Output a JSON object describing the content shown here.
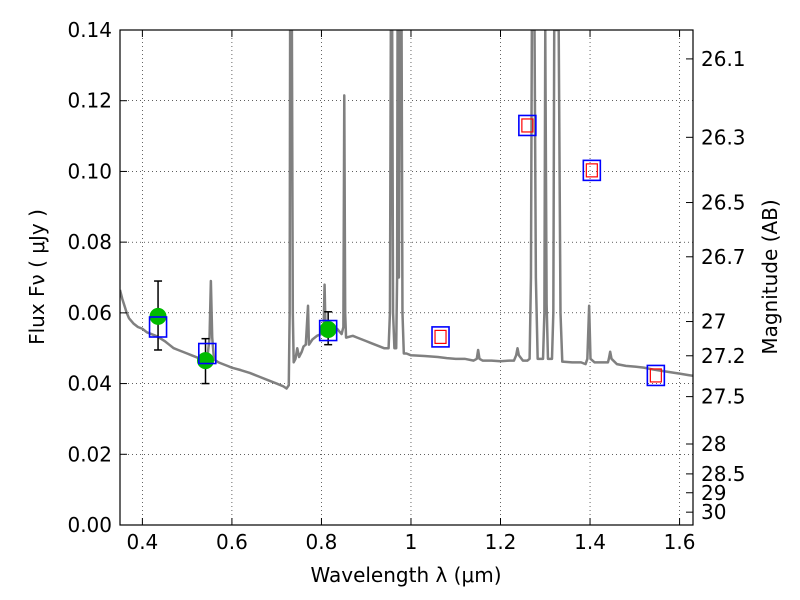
{
  "chart_data": {
    "type": "line",
    "title": "",
    "xlabel": "Wavelength  λ (μm)",
    "ylabel": "Flux  Fν  ( μJy )",
    "y2label": "Magnitude (AB)",
    "xlim": [
      0.35,
      1.63
    ],
    "ylim": [
      0.0,
      0.14
    ],
    "grid": true,
    "x_ticks": [
      0.4,
      0.6,
      0.8,
      1.0,
      1.2,
      1.4,
      1.6
    ],
    "x_tick_labels": [
      "0.4",
      "0.6",
      "0.8",
      "1",
      "1.2",
      "1.4",
      "1.6"
    ],
    "y_ticks": [
      0.0,
      0.02,
      0.04,
      0.06,
      0.08,
      0.1,
      0.12,
      0.14
    ],
    "y_tick_labels": [
      "0.00",
      "0.02",
      "0.04",
      "0.06",
      "0.08",
      "0.10",
      "0.12",
      "0.14"
    ],
    "mag_ticks": [
      26.1,
      26.3,
      26.5,
      26.7,
      27,
      27.2,
      27.5,
      28,
      28.5,
      29,
      30
    ],
    "mag_tick_labels": [
      "26.1",
      "26.3",
      "26.5",
      "26.7",
      "27",
      "27.2",
      "27.5",
      "28",
      "28.5",
      "29",
      "30"
    ],
    "colors": {
      "model": "#808080",
      "observed": "#00bb00",
      "model_photometry": "#0000ff",
      "fit_photometry": "#ff0000",
      "errorbar": "#000000"
    },
    "series": [
      {
        "kind": "model-spectrum",
        "points": [
          [
            0.35,
            0.0665
          ],
          [
            0.355,
            0.064
          ],
          [
            0.36,
            0.062
          ],
          [
            0.365,
            0.06
          ],
          [
            0.37,
            0.0585
          ],
          [
            0.38,
            0.057
          ],
          [
            0.39,
            0.056
          ],
          [
            0.4,
            0.0555
          ],
          [
            0.41,
            0.0545
          ],
          [
            0.42,
            0.054
          ],
          [
            0.43,
            0.0535
          ],
          [
            0.44,
            0.0528
          ],
          [
            0.45,
            0.052
          ],
          [
            0.46,
            0.051
          ],
          [
            0.47,
            0.05
          ],
          [
            0.48,
            0.0495
          ],
          [
            0.49,
            0.049
          ],
          [
            0.5,
            0.0485
          ],
          [
            0.51,
            0.048
          ],
          [
            0.52,
            0.0475
          ],
          [
            0.53,
            0.047
          ],
          [
            0.54,
            0.0468
          ],
          [
            0.545,
            0.047
          ],
          [
            0.55,
            0.053
          ],
          [
            0.553,
            0.069
          ],
          [
            0.556,
            0.053
          ],
          [
            0.56,
            0.0468
          ],
          [
            0.57,
            0.046
          ],
          [
            0.58,
            0.0455
          ],
          [
            0.59,
            0.045
          ],
          [
            0.6,
            0.0445
          ],
          [
            0.62,
            0.0438
          ],
          [
            0.64,
            0.043
          ],
          [
            0.66,
            0.042
          ],
          [
            0.68,
            0.041
          ],
          [
            0.7,
            0.04
          ],
          [
            0.715,
            0.0392
          ],
          [
            0.722,
            0.0386
          ],
          [
            0.727,
            0.0395
          ],
          [
            0.729,
            0.06
          ],
          [
            0.73,
            0.14
          ],
          [
            0.734,
            0.14
          ],
          [
            0.736,
            0.06
          ],
          [
            0.738,
            0.046
          ],
          [
            0.742,
            0.047
          ],
          [
            0.746,
            0.05
          ],
          [
            0.75,
            0.0475
          ],
          [
            0.756,
            0.049
          ],
          [
            0.76,
            0.0505
          ],
          [
            0.765,
            0.051
          ],
          [
            0.77,
            0.062
          ],
          [
            0.772,
            0.051
          ],
          [
            0.78,
            0.0525
          ],
          [
            0.79,
            0.0535
          ],
          [
            0.8,
            0.054
          ],
          [
            0.805,
            0.056
          ],
          [
            0.807,
            0.068
          ],
          [
            0.809,
            0.056
          ],
          [
            0.815,
            0.056
          ],
          [
            0.825,
            0.056
          ],
          [
            0.835,
            0.0555
          ],
          [
            0.845,
            0.054
          ],
          [
            0.849,
            0.056
          ],
          [
            0.851,
            0.1215
          ],
          [
            0.853,
            0.06
          ],
          [
            0.855,
            0.053
          ],
          [
            0.87,
            0.0535
          ],
          [
            0.88,
            0.053
          ],
          [
            0.89,
            0.0525
          ],
          [
            0.9,
            0.052
          ],
          [
            0.91,
            0.0515
          ],
          [
            0.92,
            0.051
          ],
          [
            0.93,
            0.0505
          ],
          [
            0.94,
            0.05
          ],
          [
            0.95,
            0.05
          ],
          [
            0.953,
            0.06
          ],
          [
            0.955,
            0.14
          ],
          [
            0.958,
            0.14
          ],
          [
            0.96,
            0.06
          ],
          [
            0.963,
            0.05
          ],
          [
            0.967,
            0.05
          ],
          [
            0.969,
            0.07
          ],
          [
            0.97,
            0.14
          ],
          [
            0.973,
            0.07
          ],
          [
            0.975,
            0.14
          ],
          [
            0.979,
            0.14
          ],
          [
            0.981,
            0.06
          ],
          [
            0.984,
            0.0485
          ],
          [
            0.99,
            0.0485
          ],
          [
            1.0,
            0.048
          ],
          [
            1.03,
            0.0478
          ],
          [
            1.06,
            0.0475
          ],
          [
            1.08,
            0.0472
          ],
          [
            1.1,
            0.047
          ],
          [
            1.12,
            0.047
          ],
          [
            1.14,
            0.0465
          ],
          [
            1.147,
            0.047
          ],
          [
            1.15,
            0.0495
          ],
          [
            1.153,
            0.047
          ],
          [
            1.16,
            0.0465
          ],
          [
            1.18,
            0.0465
          ],
          [
            1.2,
            0.0463
          ],
          [
            1.22,
            0.0465
          ],
          [
            1.23,
            0.0465
          ],
          [
            1.235,
            0.048
          ],
          [
            1.238,
            0.05
          ],
          [
            1.241,
            0.048
          ],
          [
            1.25,
            0.0465
          ],
          [
            1.26,
            0.0465
          ],
          [
            1.265,
            0.047
          ],
          [
            1.268,
            0.07
          ],
          [
            1.27,
            0.14
          ],
          [
            1.276,
            0.14
          ],
          [
            1.279,
            0.07
          ],
          [
            1.283,
            0.047
          ],
          [
            1.29,
            0.047
          ],
          [
            1.295,
            0.047
          ],
          [
            1.298,
            0.06
          ],
          [
            1.3,
            0.14
          ],
          [
            1.303,
            0.0625
          ],
          [
            1.306,
            0.047
          ],
          [
            1.31,
            0.047
          ],
          [
            1.315,
            0.047
          ],
          [
            1.318,
            0.06
          ],
          [
            1.32,
            0.14
          ],
          [
            1.33,
            0.14
          ],
          [
            1.334,
            0.06
          ],
          [
            1.338,
            0.0462
          ],
          [
            1.36,
            0.046
          ],
          [
            1.38,
            0.046
          ],
          [
            1.39,
            0.0455
          ],
          [
            1.394,
            0.047
          ],
          [
            1.398,
            0.062
          ],
          [
            1.401,
            0.047
          ],
          [
            1.41,
            0.046
          ],
          [
            1.43,
            0.046
          ],
          [
            1.44,
            0.046
          ],
          [
            1.442,
            0.047
          ],
          [
            1.445,
            0.049
          ],
          [
            1.448,
            0.047
          ],
          [
            1.46,
            0.0455
          ],
          [
            1.48,
            0.045
          ],
          [
            1.5,
            0.0448
          ],
          [
            1.52,
            0.0445
          ],
          [
            1.54,
            0.044
          ],
          [
            1.56,
            0.0436
          ],
          [
            1.58,
            0.0432
          ],
          [
            1.6,
            0.0428
          ],
          [
            1.62,
            0.0424
          ],
          [
            1.63,
            0.0422
          ]
        ]
      },
      {
        "kind": "observed-photometry",
        "points": [
          {
            "x": 0.435,
            "y": 0.059,
            "err_low": 0.0495,
            "err_high": 0.069
          },
          {
            "x": 0.541,
            "y": 0.0465,
            "err_low": 0.04,
            "err_high": 0.0527
          },
          {
            "x": 0.815,
            "y": 0.0553,
            "err_low": 0.051,
            "err_high": 0.0603
          }
        ]
      },
      {
        "kind": "model-photometry-blue",
        "points": [
          {
            "x": 0.435,
            "y": 0.056
          },
          {
            "x": 0.545,
            "y": 0.0485
          },
          {
            "x": 0.815,
            "y": 0.055
          },
          {
            "x": 1.066,
            "y": 0.0532
          },
          {
            "x": 1.26,
            "y": 0.113
          },
          {
            "x": 1.404,
            "y": 0.1003
          },
          {
            "x": 1.547,
            "y": 0.0423
          }
        ]
      },
      {
        "kind": "model-photometry-red",
        "points": [
          {
            "x": 1.066,
            "y": 0.0532
          },
          {
            "x": 1.26,
            "y": 0.113
          },
          {
            "x": 1.404,
            "y": 0.1003
          },
          {
            "x": 1.547,
            "y": 0.0423
          }
        ]
      }
    ]
  }
}
